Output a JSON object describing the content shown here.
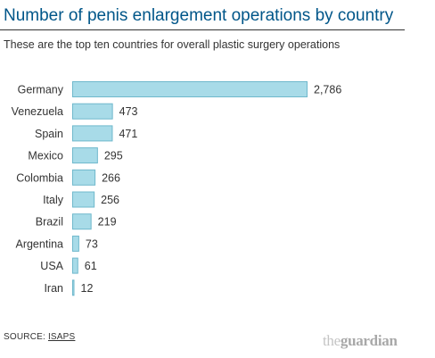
{
  "header": {
    "title": "Number of penis enlargement operations by country",
    "subtitle": "These are the top ten countries for overall plastic surgery operations"
  },
  "footer": {
    "source_prefix": "SOURCE:",
    "source_link": "ISAPS",
    "logo_the": "the",
    "logo_main": "guardian"
  },
  "colors": {
    "title": "#005689",
    "bar_fill": "#a8dbe8",
    "bar_stroke": "#6fb8cc"
  },
  "chart_data": {
    "type": "bar",
    "orientation": "horizontal",
    "title": "Number of penis enlargement operations by country",
    "subtitle": "These are the top ten countries for overall plastic surgery operations",
    "categories": [
      "Germany",
      "Venezuela",
      "Spain",
      "Mexico",
      "Colombia",
      "Italy",
      "Brazil",
      "Argentina",
      "USA",
      "Iran"
    ],
    "values": [
      2786,
      473,
      471,
      295,
      266,
      256,
      219,
      73,
      61,
      12
    ],
    "value_labels": [
      "2,786",
      "473",
      "471",
      "295",
      "266",
      "256",
      "219",
      "73",
      "61",
      "12"
    ],
    "xlim": [
      0,
      2786
    ],
    "grid": false,
    "legend": "none"
  }
}
